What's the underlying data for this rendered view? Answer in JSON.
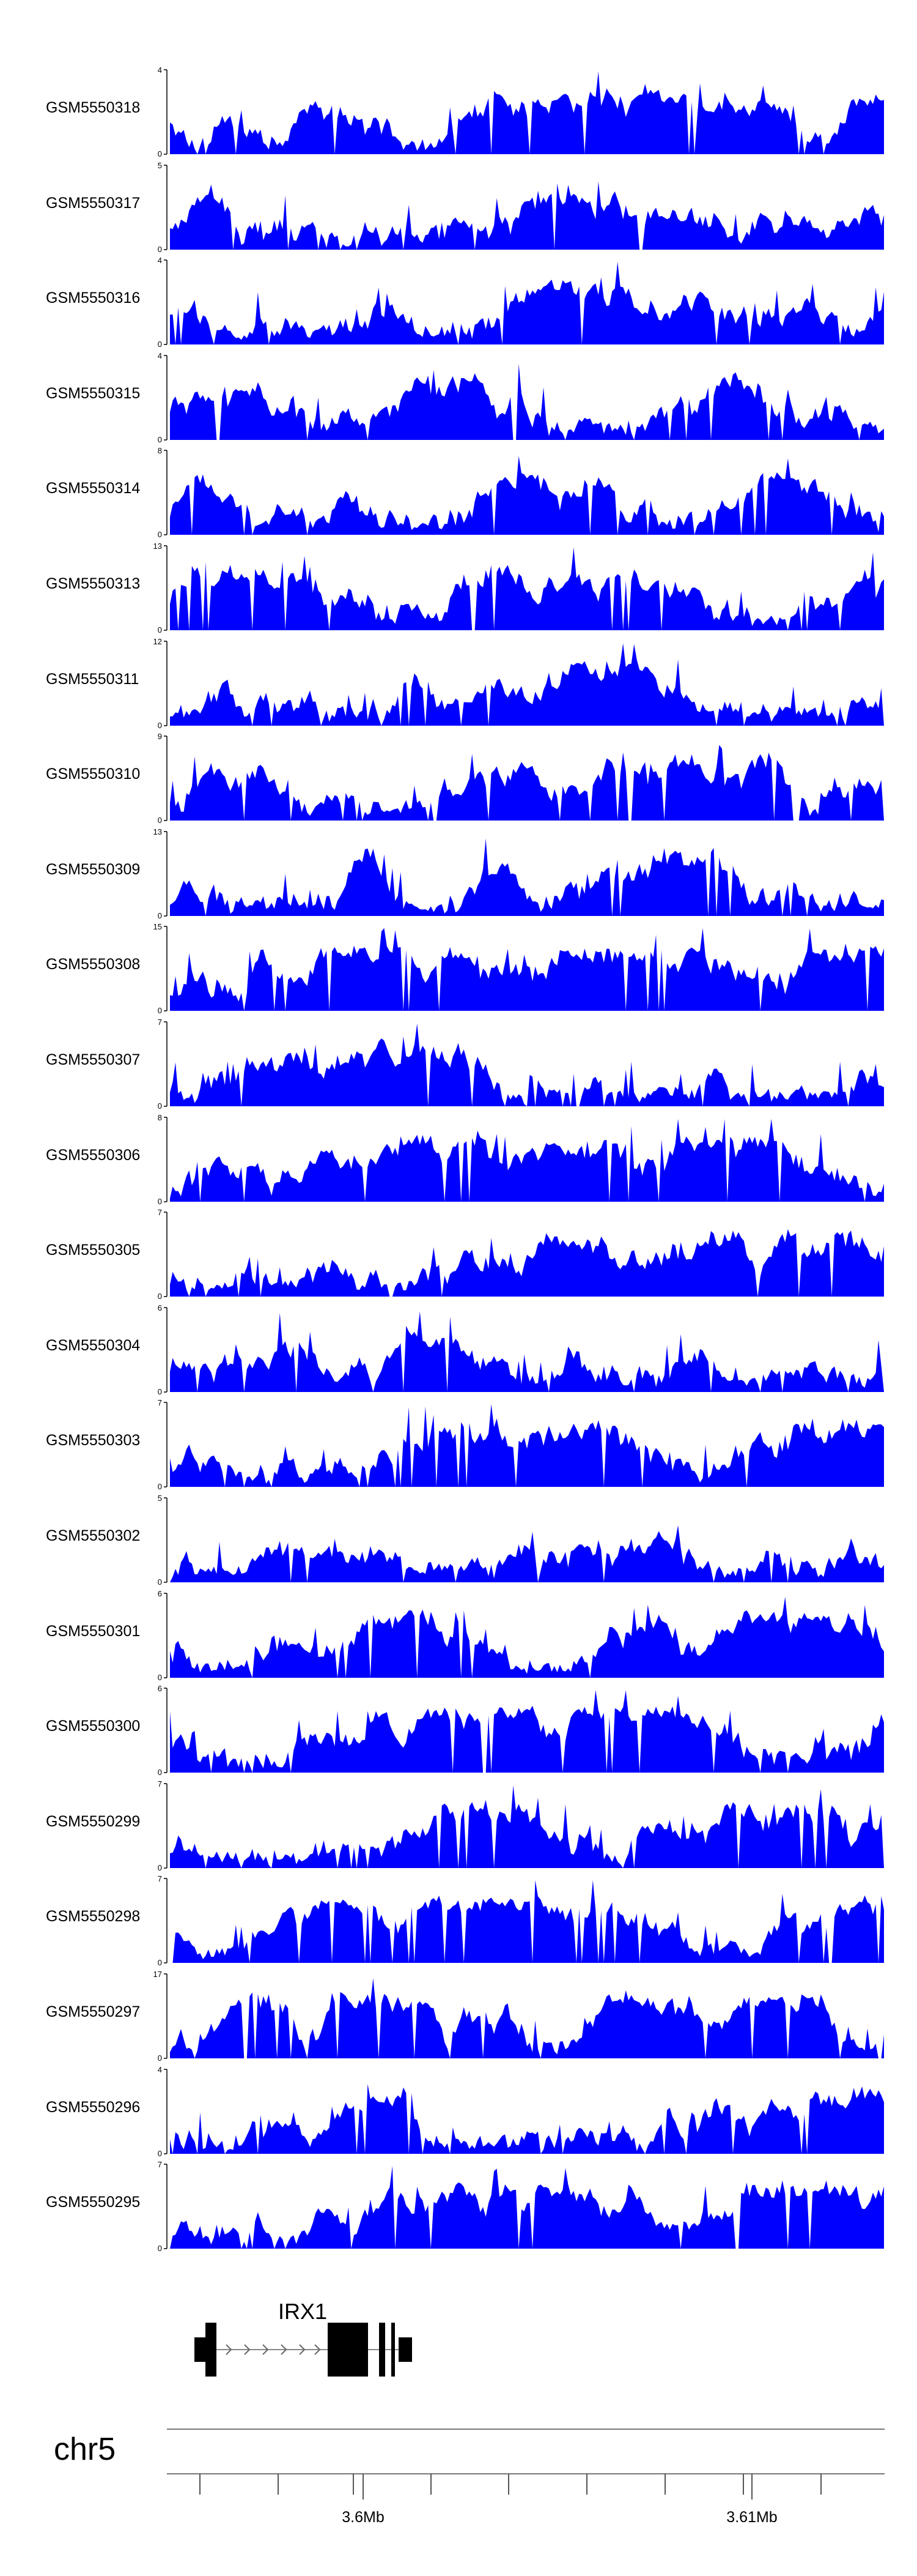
{
  "chart_data": {
    "type": "area",
    "color": "#0000ff",
    "tracks": [
      {
        "name": "GSM5550318",
        "ymax": 4
      },
      {
        "name": "GSM5550317",
        "ymax": 5
      },
      {
        "name": "GSM5550316",
        "ymax": 4
      },
      {
        "name": "GSM5550315",
        "ymax": 4
      },
      {
        "name": "GSM5550314",
        "ymax": 8
      },
      {
        "name": "GSM5550313",
        "ymax": 13
      },
      {
        "name": "GSM5550311",
        "ymax": 12
      },
      {
        "name": "GSM5550310",
        "ymax": 9
      },
      {
        "name": "GSM5550309",
        "ymax": 13
      },
      {
        "name": "GSM5550308",
        "ymax": 15
      },
      {
        "name": "GSM5550307",
        "ymax": 7
      },
      {
        "name": "GSM5550306",
        "ymax": 8
      },
      {
        "name": "GSM5550305",
        "ymax": 7
      },
      {
        "name": "GSM5550304",
        "ymax": 6
      },
      {
        "name": "GSM5550303",
        "ymax": 7
      },
      {
        "name": "GSM5550302",
        "ymax": 5
      },
      {
        "name": "GSM5550301",
        "ymax": 6
      },
      {
        "name": "GSM5550300",
        "ymax": 6
      },
      {
        "name": "GSM5550299",
        "ymax": 7
      },
      {
        "name": "GSM5550298",
        "ymax": 7
      },
      {
        "name": "GSM5550297",
        "ymax": 17
      },
      {
        "name": "GSM5550296",
        "ymax": 4
      },
      {
        "name": "GSM5550295",
        "ymax": 7
      }
    ],
    "gene": {
      "name": "IRX1",
      "strand": "+"
    },
    "chromosome": "chr5",
    "x_ticks": [
      {
        "value": 3.6,
        "label": "3.6Mb"
      },
      {
        "value": 3.61,
        "label": "3.61Mb"
      }
    ]
  }
}
